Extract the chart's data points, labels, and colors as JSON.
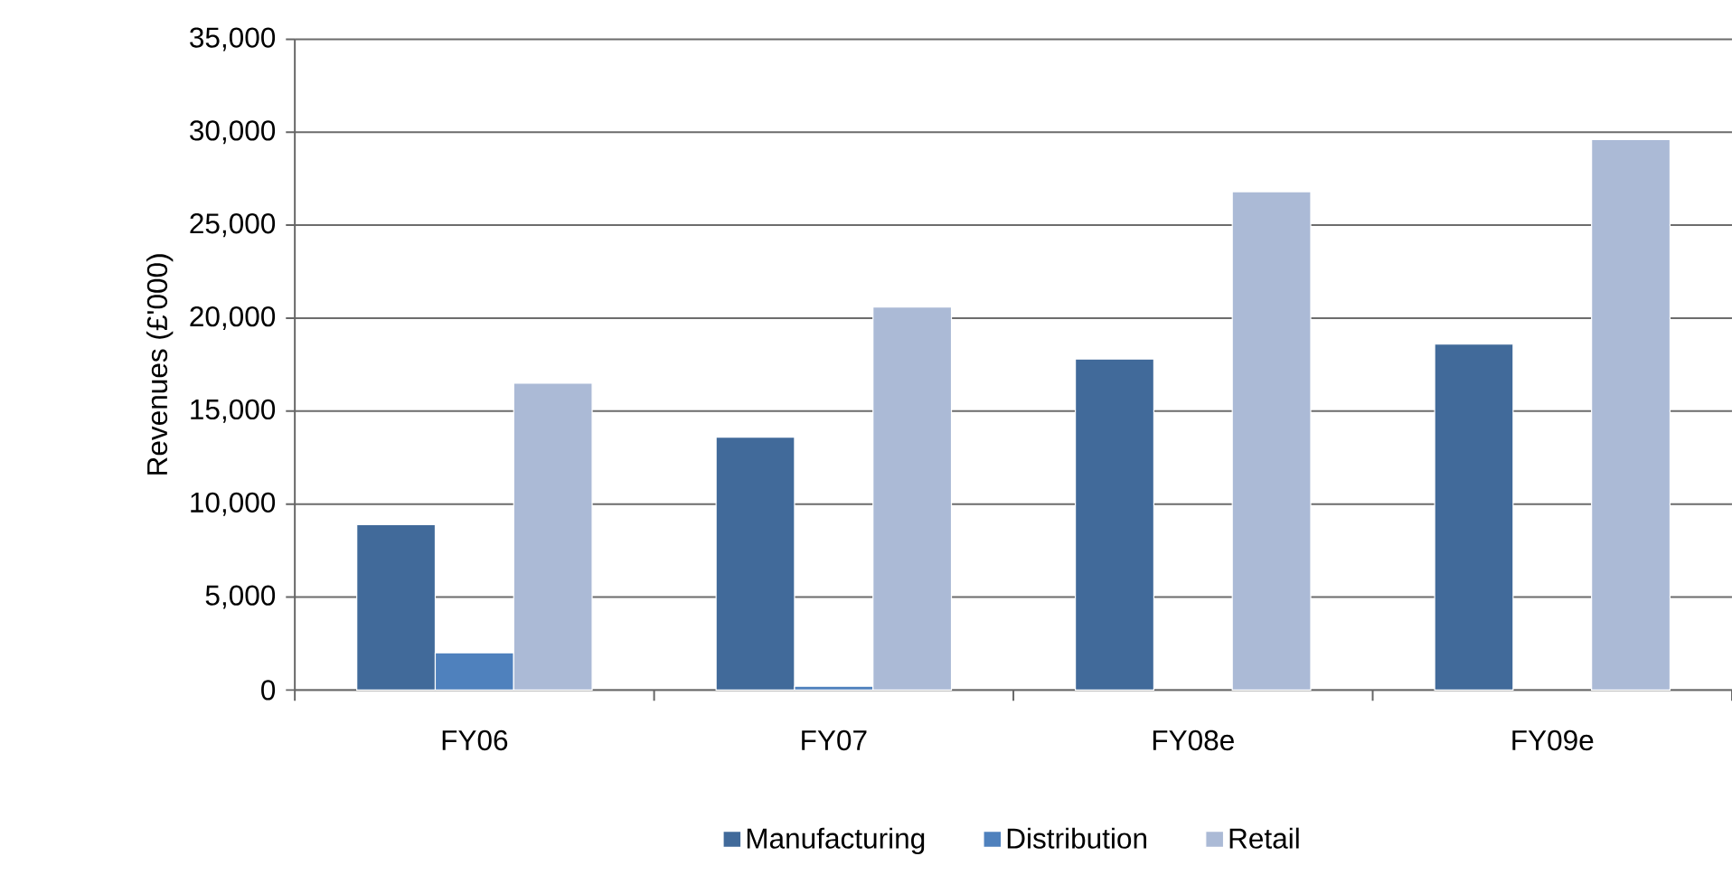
{
  "chart_data": {
    "type": "bar",
    "ylabel": "Revenues (£'000)",
    "categories": [
      "FY06",
      "FY07",
      "FY08e",
      "FY09e"
    ],
    "series": [
      {
        "name": "Manufacturing",
        "color": "#416a9a",
        "values": [
          8900,
          13600,
          17800,
          18600
        ]
      },
      {
        "name": "Distribution",
        "color": "#4f81bd",
        "values": [
          2000,
          200,
          null,
          null
        ]
      },
      {
        "name": "Retail",
        "color": "#abbad6",
        "values": [
          16500,
          20600,
          26800,
          29600
        ]
      }
    ],
    "ylim": [
      0,
      35000
    ],
    "yticks": [
      {
        "value": 0,
        "label": "0"
      },
      {
        "value": 5000,
        "label": "5,000"
      },
      {
        "value": 10000,
        "label": "10,000"
      },
      {
        "value": 15000,
        "label": "15,000"
      },
      {
        "value": 20000,
        "label": "20,000"
      },
      {
        "value": 25000,
        "label": "25,000"
      },
      {
        "value": 30000,
        "label": "30,000"
      },
      {
        "value": 35000,
        "label": "35,000"
      }
    ],
    "grid": "y",
    "legend": "bottom"
  }
}
